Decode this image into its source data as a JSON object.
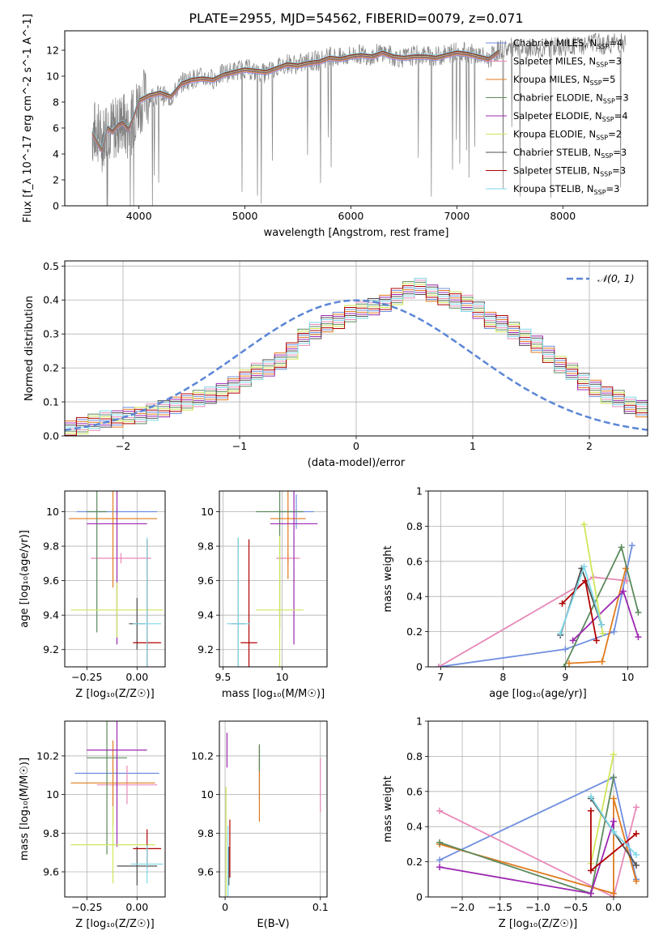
{
  "figure": {
    "title": "PLATE=2955, MJD=54562, FIBERID=0079, z=0.071"
  },
  "colors": {
    "Chabrier MILES": "#6f8fdf",
    "Salpeter MILES": "#e889b8",
    "Kroupa MILES": "#e07b1f",
    "Chabrier ELODIE": "#5d8a5d",
    "Salpeter ELODIE": "#9c27b0",
    "Kroupa ELODIE": "#cfe65a",
    "Chabrier STELIB": "#4f4f4f",
    "Salpeter STELIB": "#b00000",
    "Kroupa STELIB": "#7fd8e8",
    "data": "#808080",
    "gaussian": "#5b86d6"
  },
  "chart_data": [
    {
      "id": "spectrum",
      "type": "line",
      "xlabel": "wavelength [Angstrom, rest frame]",
      "ylabel": "Flux [f_λ 10^-17 erg cm^-2 s^-1 A^-1]",
      "xlim": [
        3300,
        8800
      ],
      "ylim": [
        0,
        13.5
      ],
      "xticks": [
        4000,
        5000,
        6000,
        7000,
        8000
      ],
      "yticks": [
        0,
        2,
        4,
        6,
        8,
        10,
        12
      ],
      "grid": false,
      "legend_position": "right",
      "data_series": {
        "name": "data",
        "x": [
          3560,
          3600,
          3650,
          3700,
          3750,
          3800,
          3850,
          3900,
          3950,
          4000,
          4100,
          4200,
          4300,
          4400,
          4500,
          4600,
          4700,
          4800,
          4900,
          5000,
          5100,
          5200,
          5300,
          5400,
          5500,
          5600,
          5700,
          5800,
          5900,
          6000,
          6100,
          6200,
          6300,
          6400,
          6500,
          6600,
          6700,
          6800,
          6900,
          7000,
          7100,
          7200,
          7300,
          7400,
          7500,
          7600,
          7700,
          7800,
          7900,
          8000,
          8100,
          8200,
          8300,
          8400,
          8500,
          8600
        ],
        "y": [
          5.5,
          5.9,
          5.0,
          6.2,
          5.8,
          6.2,
          6.5,
          5.8,
          6.8,
          8.0,
          8.4,
          8.6,
          8.3,
          9.5,
          9.8,
          9.9,
          9.8,
          10.2,
          10.4,
          10.6,
          10.3,
          10.2,
          10.7,
          11.0,
          10.9,
          11.1,
          11.2,
          11.5,
          11.4,
          11.6,
          11.7,
          11.6,
          11.9,
          11.5,
          11.4,
          11.6,
          11.6,
          11.5,
          11.7,
          11.9,
          11.8,
          11.6,
          11.3,
          12.0,
          12.2,
          12.0,
          12.2,
          12.1,
          12.3,
          12.2,
          12.3,
          12.4,
          12.6,
          12.4,
          12.6,
          12.6
        ]
      },
      "model_x": [
        3560,
        3600,
        3650,
        3700,
        3750,
        3800,
        3850,
        3900,
        3950,
        4000,
        4100,
        4200,
        4300,
        4400,
        4500,
        4600,
        4700,
        4800,
        4900,
        5000,
        5100,
        5200,
        5300,
        5400,
        5500,
        5600,
        5700,
        5800,
        5900,
        6000,
        6100,
        6200,
        6300,
        6400,
        6500,
        6600,
        6700,
        6800,
        6900,
        7000,
        7100,
        7200,
        7300,
        7400
      ],
      "model_y": [
        5.6,
        5.0,
        4.3,
        6.0,
        5.7,
        6.2,
        6.4,
        5.9,
        6.9,
        8.1,
        8.5,
        8.7,
        8.4,
        9.4,
        9.7,
        9.8,
        9.7,
        10.1,
        10.3,
        10.5,
        10.4,
        10.3,
        10.6,
        10.9,
        10.8,
        11.0,
        11.1,
        11.4,
        11.3,
        11.5,
        11.6,
        11.5,
        11.8,
        11.5,
        11.4,
        11.5,
        11.5,
        11.4,
        11.6,
        11.8,
        11.7,
        11.5,
        11.3,
        11.9
      ],
      "legend": [
        {
          "model": "Chabrier MILES",
          "n_ssp": 4
        },
        {
          "model": "Salpeter MILES",
          "n_ssp": 3
        },
        {
          "model": "Kroupa MILES",
          "n_ssp": 5
        },
        {
          "model": "Chabrier ELODIE",
          "n_ssp": 3
        },
        {
          "model": "Salpeter ELODIE",
          "n_ssp": 4
        },
        {
          "model": "Kroupa ELODIE",
          "n_ssp": 2
        },
        {
          "model": "Chabrier STELIB",
          "n_ssp": 3
        },
        {
          "model": "Salpeter STELIB",
          "n_ssp": 3
        },
        {
          "model": "Kroupa STELIB",
          "n_ssp": 3
        }
      ]
    },
    {
      "id": "residuals",
      "type": "bar",
      "xlabel": "(data-model)/error",
      "ylabel": "Normed distribution",
      "xlim": [
        -2.5,
        2.5
      ],
      "ylim": [
        0,
        0.515
      ],
      "xticks": [
        -2,
        -1,
        0,
        1,
        2
      ],
      "yticks": [
        0.0,
        0.1,
        0.2,
        0.3,
        0.4,
        0.5
      ],
      "grid": true,
      "legend_position": "top-right",
      "gaussian_label": "𝒩(0, 1)",
      "bin_width": 0.1,
      "bin_start": -2.5,
      "heights": [
        0.02,
        0.03,
        0.04,
        0.05,
        0.05,
        0.06,
        0.06,
        0.07,
        0.08,
        0.09,
        0.1,
        0.11,
        0.12,
        0.13,
        0.15,
        0.17,
        0.19,
        0.2,
        0.22,
        0.25,
        0.29,
        0.31,
        0.33,
        0.34,
        0.36,
        0.37,
        0.38,
        0.39,
        0.41,
        0.43,
        0.44,
        0.42,
        0.41,
        0.4,
        0.39,
        0.37,
        0.34,
        0.33,
        0.31,
        0.29,
        0.27,
        0.24,
        0.21,
        0.19,
        0.16,
        0.14,
        0.12,
        0.11,
        0.09,
        0.08,
        0.07,
        0.06,
        0.05,
        0.05,
        0.04,
        0.04,
        0.03,
        0.03,
        0.02,
        0.02
      ]
    },
    {
      "id": "age-vs-Z",
      "type": "scatter",
      "xlabel": "Z [log₁₀(Z/Z☉)]",
      "ylabel": "age  [log₁₀(age/yr)]",
      "xlim": [
        -0.36,
        0.14
      ],
      "ylim": [
        9.1,
        10.12
      ],
      "xticks": [
        -0.25,
        0.0
      ],
      "xtick_labels": [
        "−0.25",
        "0.00"
      ],
      "yticks": [
        9.2,
        9.4,
        9.6,
        9.8,
        10.0
      ],
      "grid": true,
      "points": [
        {
          "model": "Chabrier MILES",
          "x": -0.1,
          "y": 10.0,
          "xerr": 0.2,
          "yerr": 0.02
        },
        {
          "model": "Salpeter MILES",
          "x": -0.08,
          "y": 9.73,
          "xerr": 0.15,
          "yerr": 0.03
        },
        {
          "model": "Kroupa MILES",
          "x": -0.12,
          "y": 9.96,
          "xerr": 0.22,
          "yerr": 0.4
        },
        {
          "model": "Chabrier ELODIE",
          "x": -0.2,
          "y": 10.0,
          "xerr": 0.05,
          "yerr": 0.7
        },
        {
          "model": "Salpeter ELODIE",
          "x": -0.1,
          "y": 9.93,
          "xerr": 0.15,
          "yerr": 0.7
        },
        {
          "model": "Kroupa ELODIE",
          "x": -0.1,
          "y": 9.43,
          "xerr": 0.23,
          "yerr": 0.16
        },
        {
          "model": "Chabrier STELIB",
          "x": 0.0,
          "y": 9.35,
          "xerr": 0.04,
          "yerr": 0.15
        },
        {
          "model": "Salpeter STELIB",
          "x": 0.05,
          "y": 9.24,
          "xerr": 0.07,
          "yerr": 0.6
        },
        {
          "model": "Kroupa STELIB",
          "x": 0.05,
          "y": 9.35,
          "xerr": 0.07,
          "yerr": 0.5
        }
      ]
    },
    {
      "id": "age-vs-mass",
      "type": "scatter",
      "xlabel": "mass [log₁₀(M/M☉)]",
      "ylabel": "",
      "xlim": [
        9.47,
        10.38
      ],
      "ylim": [
        9.1,
        10.12
      ],
      "xticks": [
        9.5,
        10.0
      ],
      "yticks": [
        9.2,
        9.4,
        9.6,
        9.8,
        10.0
      ],
      "grid": true,
      "points": [
        {
          "model": "Chabrier MILES",
          "x": 10.12,
          "y": 10.0,
          "xerr": 0.15,
          "yerr": 0.1
        },
        {
          "model": "Salpeter MILES",
          "x": 10.05,
          "y": 9.73,
          "xerr": 0.1,
          "yerr": 0.03
        },
        {
          "model": "Kroupa MILES",
          "x": 10.05,
          "y": 9.96,
          "xerr": 0.15,
          "yerr": 0.35
        },
        {
          "model": "Chabrier ELODIE",
          "x": 9.98,
          "y": 10.0,
          "xerr": 0.2,
          "yerr": 0.68
        },
        {
          "model": "Salpeter ELODIE",
          "x": 10.1,
          "y": 9.93,
          "xerr": 0.2,
          "yerr": 0.7
        },
        {
          "model": "Kroupa ELODIE",
          "x": 9.98,
          "y": 9.43,
          "xerr": 0.2,
          "yerr": 0.43
        },
        {
          "model": "Chabrier STELIB",
          "x": 9.63,
          "y": 9.35,
          "xerr": 0.06,
          "yerr": 0.5
        },
        {
          "model": "Salpeter STELIB",
          "x": 9.72,
          "y": 9.24,
          "xerr": 0.07,
          "yerr": 0.6
        },
        {
          "model": "Kroupa STELIB",
          "x": 9.63,
          "y": 9.35,
          "xerr": 0.1,
          "yerr": 0.5
        }
      ]
    },
    {
      "id": "weight-vs-age",
      "type": "line",
      "xlabel": "age  [log₁₀(age/yr)]",
      "ylabel": "mass weight",
      "xlim": [
        6.8,
        10.32
      ],
      "ylim": [
        0.0,
        1.0
      ],
      "xticks": [
        7,
        8,
        9,
        10
      ],
      "yticks": [
        0.0,
        0.2,
        0.4,
        0.6,
        0.8,
        1.0
      ],
      "grid": true,
      "series": [
        {
          "model": "Chabrier MILES",
          "x": [
            6.97,
            9.0,
            9.78,
            10.07
          ],
          "y": [
            0.0,
            0.1,
            0.2,
            0.69
          ]
        },
        {
          "model": "Salpeter MILES",
          "x": [
            6.97,
            9.45,
            9.98
          ],
          "y": [
            0.0,
            0.51,
            0.49
          ]
        },
        {
          "model": "Kroupa MILES",
          "x": [
            9.06,
            9.59,
            9.97
          ],
          "y": [
            0.02,
            0.03,
            0.56
          ]
        },
        {
          "model": "Chabrier ELODIE",
          "x": [
            8.98,
            9.9,
            10.17
          ],
          "y": [
            0.0,
            0.68,
            0.31
          ]
        },
        {
          "model": "Salpeter ELODIE",
          "x": [
            9.12,
            9.93,
            10.17
          ],
          "y": [
            0.15,
            0.43,
            0.17
          ]
        },
        {
          "model": "Kroupa ELODIE",
          "x": [
            9.3,
            9.6
          ],
          "y": [
            0.81,
            0.19
          ]
        },
        {
          "model": "Chabrier STELIB",
          "x": [
            8.92,
            9.26,
            9.58
          ],
          "y": [
            0.18,
            0.56,
            0.24
          ]
        },
        {
          "model": "Salpeter STELIB",
          "x": [
            8.95,
            9.32,
            9.5
          ],
          "y": [
            0.36,
            0.49,
            0.15
          ]
        },
        {
          "model": "Kroupa STELIB",
          "x": [
            8.92,
            9.3,
            9.58
          ],
          "y": [
            0.19,
            0.57,
            0.24
          ]
        }
      ]
    },
    {
      "id": "mass-vs-Z",
      "type": "scatter",
      "xlabel": "Z [log₁₀(Z/Z☉)]",
      "ylabel": "mass [log₁₀(M/M☉)]",
      "xlim": [
        -0.36,
        0.14
      ],
      "ylim": [
        9.47,
        10.38
      ],
      "xticks": [
        -0.25,
        0.0
      ],
      "xtick_labels": [
        "−0.25",
        "0.00"
      ],
      "yticks": [
        9.6,
        9.8,
        10.0,
        10.2
      ],
      "grid": true,
      "points": [
        {
          "model": "Chabrier MILES",
          "x": -0.1,
          "y": 10.11,
          "xerr": 0.21,
          "yerr": 0.1
        },
        {
          "model": "Salpeter MILES",
          "x": -0.05,
          "y": 10.05,
          "xerr": 0.15,
          "yerr": 0.1
        },
        {
          "model": "Kroupa MILES",
          "x": -0.12,
          "y": 10.06,
          "xerr": 0.21,
          "yerr": 0.22
        },
        {
          "model": "Chabrier ELODIE",
          "x": -0.15,
          "y": 10.19,
          "xerr": 0.1,
          "yerr": 0.5
        },
        {
          "model": "Salpeter ELODIE",
          "x": -0.1,
          "y": 10.23,
          "xerr": 0.15,
          "yerr": 0.5
        },
        {
          "model": "Kroupa ELODIE",
          "x": -0.12,
          "y": 9.74,
          "xerr": 0.21,
          "yerr": 0.2
        },
        {
          "model": "Chabrier STELIB",
          "x": 0.0,
          "y": 9.63,
          "xerr": 0.1,
          "yerr": 0.1
        },
        {
          "model": "Salpeter STELIB",
          "x": 0.05,
          "y": 9.72,
          "xerr": 0.07,
          "yerr": 0.1
        },
        {
          "model": "Kroupa STELIB",
          "x": 0.05,
          "y": 9.64,
          "xerr": 0.08,
          "yerr": 0.1
        }
      ]
    },
    {
      "id": "mass-vs-ebv",
      "type": "scatter",
      "xlabel": "E(B-V)",
      "ylabel": "",
      "xlim": [
        -0.006,
        0.107
      ],
      "ylim": [
        9.47,
        10.38
      ],
      "xticks": [
        0.0,
        0.1
      ],
      "yticks": [
        9.6,
        9.8,
        10.0,
        10.2
      ],
      "grid": true,
      "points": [
        {
          "model": "Chabrier MILES",
          "x": 0.036,
          "y": 10.11,
          "xerr": 0.0,
          "yerr": 0.14
        },
        {
          "model": "Salpeter MILES",
          "x": 0.1,
          "y": 10.05,
          "xerr": 0.0,
          "yerr": 0.14
        },
        {
          "model": "Kroupa MILES",
          "x": 0.036,
          "y": 10.06,
          "xerr": 0.0,
          "yerr": 0.2
        },
        {
          "model": "Chabrier ELODIE",
          "x": 0.036,
          "y": 10.19,
          "xerr": 0.0,
          "yerr": 0.07
        },
        {
          "model": "Salpeter ELODIE",
          "x": 0.002,
          "y": 10.23,
          "xerr": 0.0,
          "yerr": 0.09
        },
        {
          "model": "Kroupa ELODIE",
          "x": 0.001,
          "y": 9.74,
          "xerr": 0.0,
          "yerr": 0.3
        },
        {
          "model": "Chabrier STELIB",
          "x": 0.004,
          "y": 9.63,
          "xerr": 0.0,
          "yerr": 0.1
        },
        {
          "model": "Salpeter STELIB",
          "x": 0.005,
          "y": 9.72,
          "xerr": 0.0,
          "yerr": 0.15
        },
        {
          "model": "Kroupa STELIB",
          "x": 0.003,
          "y": 9.64,
          "xerr": 0.0,
          "yerr": 0.2
        }
      ]
    },
    {
      "id": "weight-vs-Z",
      "type": "line",
      "xlabel": "Z [log₁₀(Z/Z☉)]",
      "ylabel": "mass weight",
      "xlim": [
        -2.45,
        0.45
      ],
      "ylim": [
        0.0,
        1.0
      ],
      "xticks": [
        -2.0,
        -1.5,
        -1.0,
        -0.5,
        0.0
      ],
      "xtick_labels": [
        "−2.0",
        "−1.5",
        "−1.0",
        "−0.5",
        "0.0"
      ],
      "yticks": [
        0.0,
        0.2,
        0.4,
        0.6,
        0.8,
        1.0
      ],
      "grid": true,
      "series": [
        {
          "model": "Chabrier MILES",
          "x": [
            -2.3,
            0.0,
            0.3
          ],
          "y": [
            0.21,
            0.68,
            0.1
          ]
        },
        {
          "model": "Salpeter MILES",
          "x": [
            -2.3,
            0.0,
            0.3
          ],
          "y": [
            0.49,
            0.0,
            0.51
          ]
        },
        {
          "model": "Kroupa MILES",
          "x": [
            -2.3,
            0.0,
            0.0,
            0.3
          ],
          "y": [
            0.3,
            0.02,
            0.56,
            0.09
          ]
        },
        {
          "model": "Chabrier ELODIE",
          "x": [
            -2.3,
            -0.3,
            0.0
          ],
          "y": [
            0.31,
            0.02,
            0.68
          ]
        },
        {
          "model": "Salpeter ELODIE",
          "x": [
            -2.3,
            -0.3,
            0.0,
            0.0
          ],
          "y": [
            0.17,
            0.02,
            0.43,
            0.37
          ]
        },
        {
          "model": "Kroupa ELODIE",
          "x": [
            -0.3,
            0.0
          ],
          "y": [
            0.19,
            0.81
          ]
        },
        {
          "model": "Chabrier STELIB",
          "x": [
            -0.3,
            0.0,
            0.3
          ],
          "y": [
            0.56,
            0.37,
            0.18
          ]
        },
        {
          "model": "Salpeter STELIB",
          "x": [
            -0.3,
            -0.3,
            0.3
          ],
          "y": [
            0.49,
            0.15,
            0.36
          ]
        },
        {
          "model": "Kroupa STELIB",
          "x": [
            -0.3,
            0.0,
            0.3
          ],
          "y": [
            0.57,
            0.37,
            0.24
          ]
        }
      ]
    }
  ]
}
